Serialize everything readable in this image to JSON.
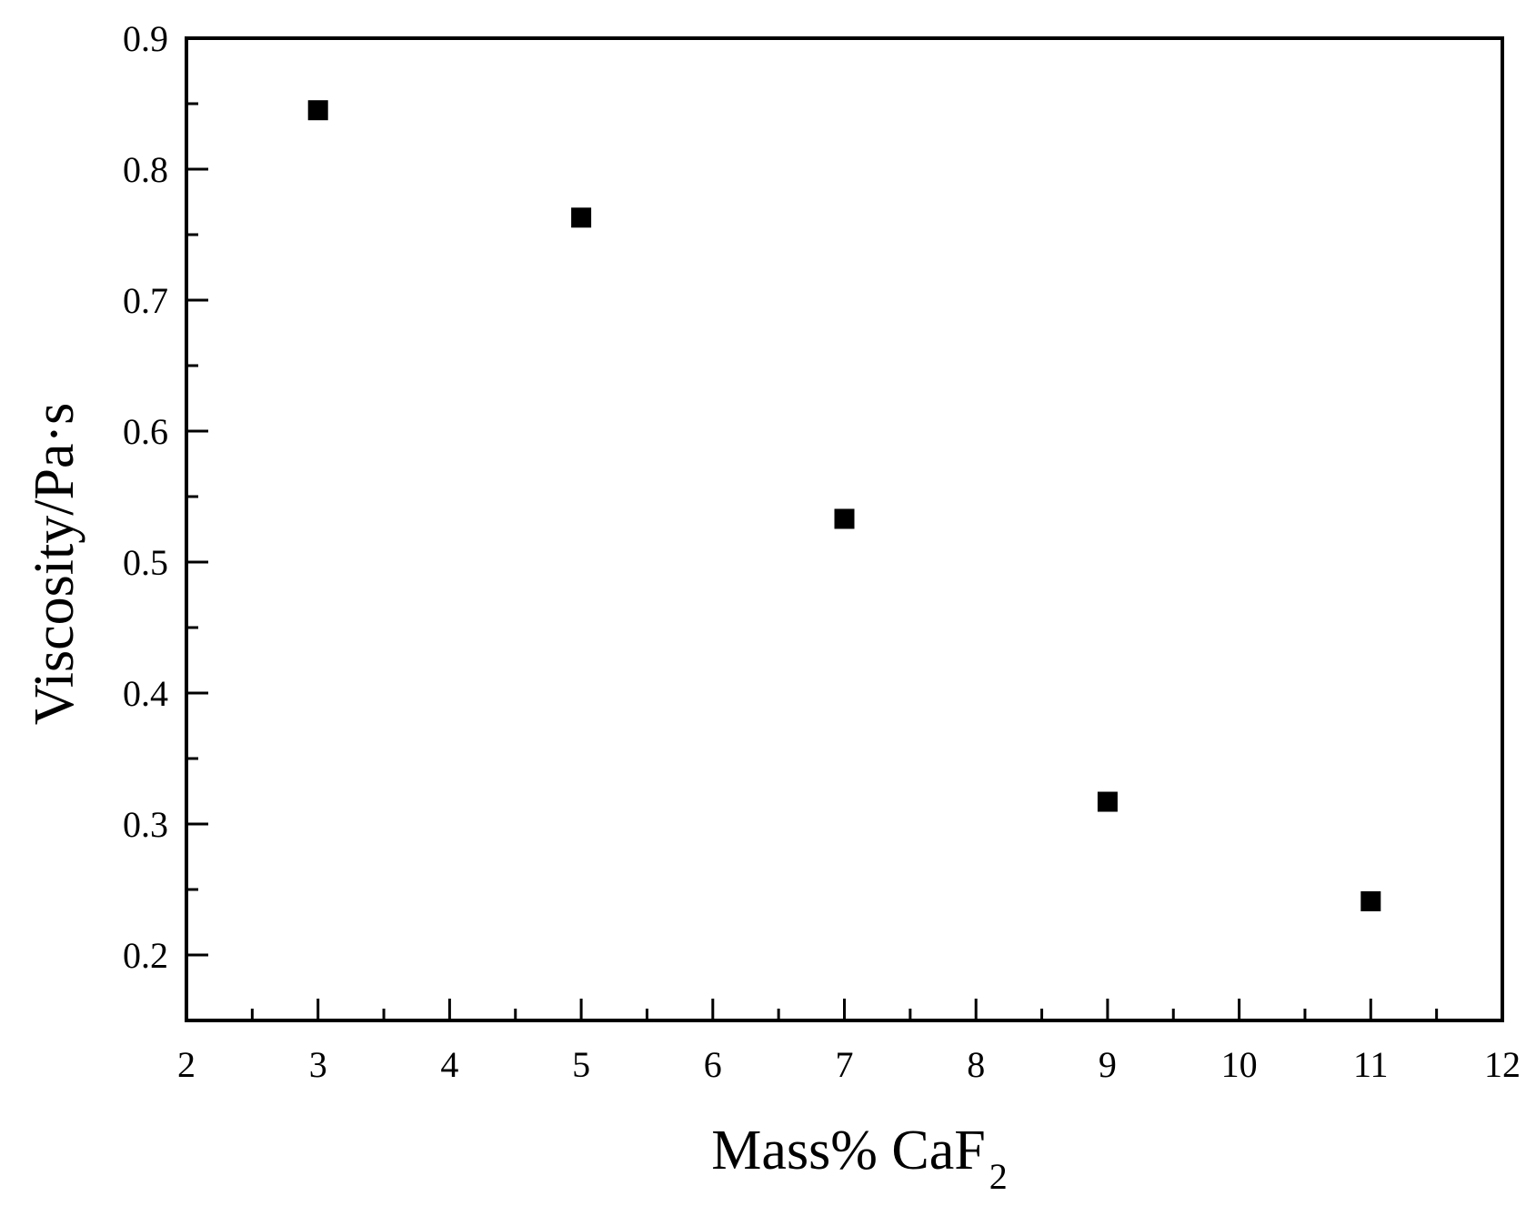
{
  "chart_data": {
    "type": "scatter",
    "title": "",
    "xlabel": "Mass% CaF",
    "xlabel_subscript": "2",
    "ylabel": "Viscosity/Pa·s",
    "xlim": [
      2,
      12
    ],
    "ylim": [
      0.15,
      0.9
    ],
    "x_ticks": [
      "2",
      "3",
      "4",
      "5",
      "6",
      "7",
      "8",
      "9",
      "10",
      "11",
      "12"
    ],
    "y_ticks": [
      "0.2",
      "0.3",
      "0.4",
      "0.5",
      "0.6",
      "0.7",
      "0.8",
      "0.9"
    ],
    "grid": false,
    "marker": "square",
    "colors": {
      "marker": "#000000",
      "axis": "#000000",
      "background": "#ffffff"
    },
    "series": [
      {
        "x": [
          3,
          5,
          7,
          9,
          11
        ],
        "y": [
          0.845,
          0.763,
          0.533,
          0.317,
          0.241
        ]
      }
    ]
  }
}
